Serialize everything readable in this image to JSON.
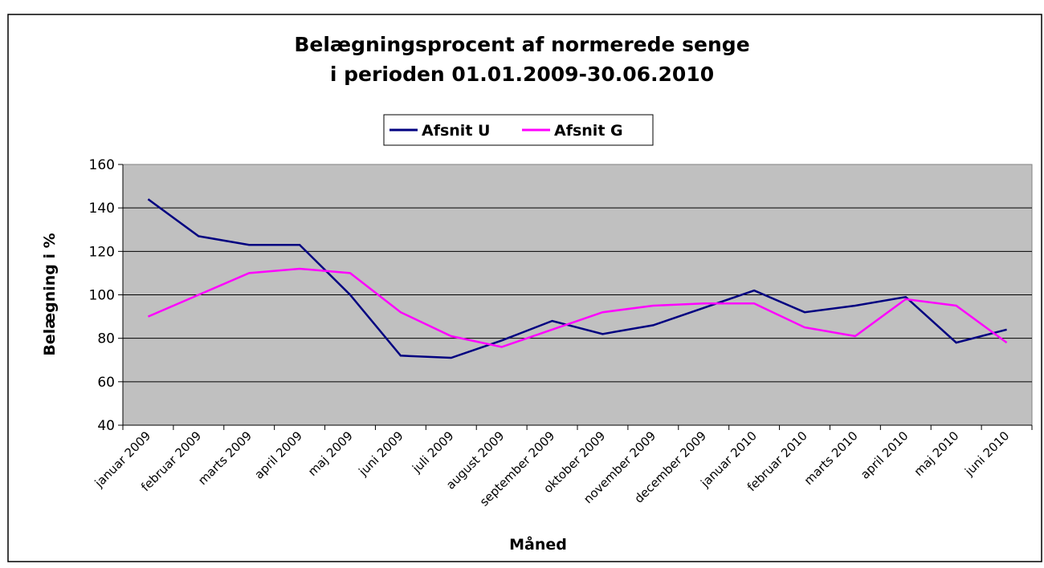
{
  "chart_data": {
    "type": "line",
    "title": "Belægningsprocent af normerede senge",
    "subtitle": "i perioden 01.01.2009-30.06.2010",
    "x_label": "Måned",
    "y_label": "Belægning i %",
    "categories": [
      "januar 2009",
      "februar 2009",
      "marts 2009",
      "april 2009",
      "maj 2009",
      "juni 2009",
      "juli 2009",
      "august 2009",
      "september 2009",
      "oktober 2009",
      "november 2009",
      "december 2009",
      "januar 2010",
      "februar 2010",
      "marts 2010",
      "april 2010",
      "maj 2010",
      "juni 2010"
    ],
    "series": [
      {
        "name": "Afsnit U",
        "color": "#000080",
        "values": [
          144,
          127,
          123,
          123,
          100,
          72,
          71,
          79,
          88,
          82,
          86,
          94,
          102,
          92,
          95,
          99,
          78,
          84
        ]
      },
      {
        "name": "Afsnit G",
        "color": "#ff00ff",
        "values": [
          90,
          100,
          110,
          112,
          110,
          92,
          81,
          76,
          84,
          92,
          95,
          96,
          96,
          85,
          81,
          98,
          95,
          78
        ]
      }
    ],
    "ylim": [
      40,
      160
    ],
    "yticks": [
      40,
      60,
      80,
      100,
      120,
      140,
      160
    ],
    "grid": true,
    "legend": "top"
  }
}
